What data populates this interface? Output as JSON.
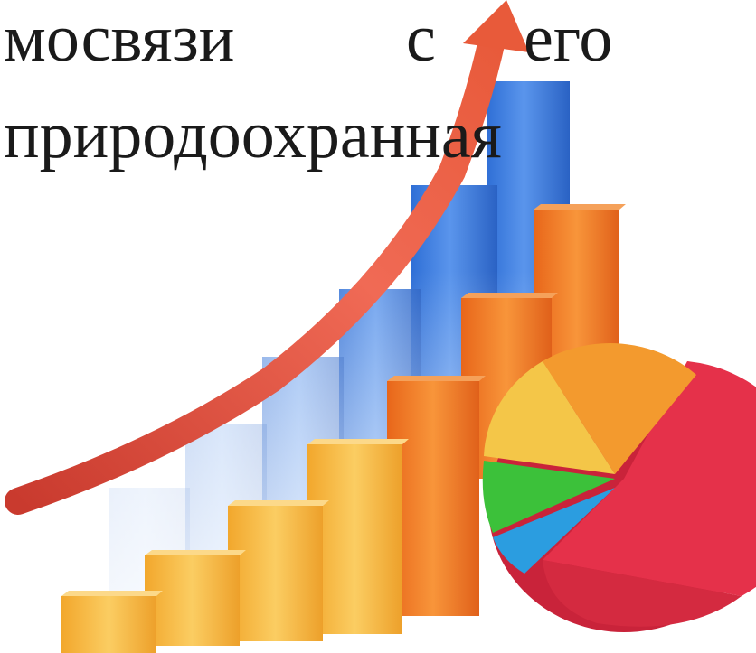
{
  "caption": {
    "line1_words": [
      "мосвязи",
      "с",
      "его"
    ],
    "line2": "природоохранная"
  },
  "illustration": {
    "kind": "decorative 3D bar chart with growth arrow and pie chart",
    "colors": {
      "blue": "#3f7de0",
      "orange": "#f07a22",
      "yellow": "#f6b83c",
      "arrow": "#e84b3c",
      "pie_red": "#e5314a",
      "pie_yellow": "#f4c648",
      "pie_orange": "#f39a2e",
      "pie_green": "#3cc13a",
      "pie_blue": "#2b9de0"
    }
  }
}
